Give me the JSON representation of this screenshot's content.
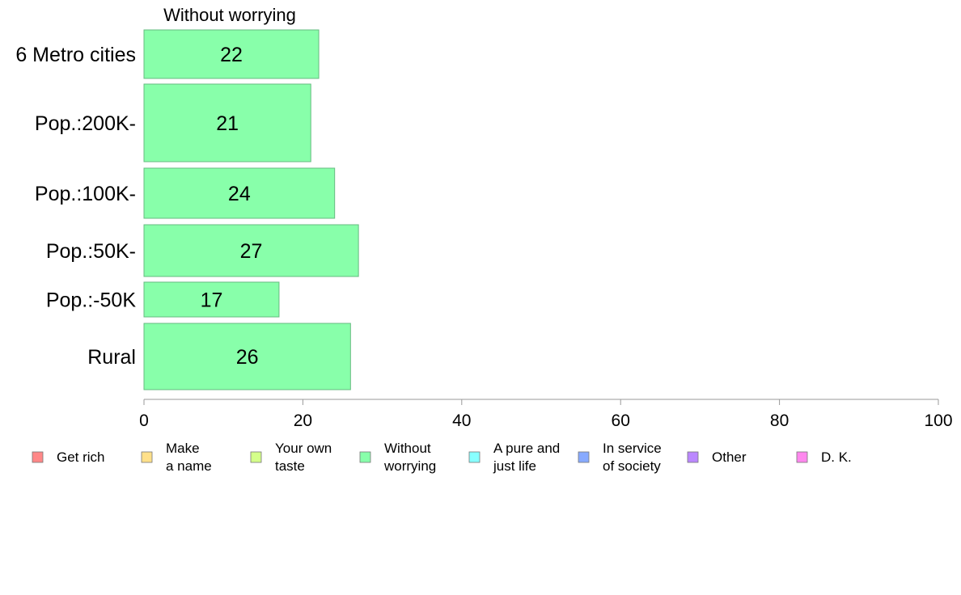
{
  "chart_data": {
    "type": "bar",
    "orientation": "horizontal",
    "title": "Without worrying",
    "categories": [
      "6 Metro cities",
      "Pop.:200K-",
      "Pop.:100K-",
      "Pop.:50K-",
      "Pop.:-50K",
      "Rural"
    ],
    "values": [
      22,
      21,
      24,
      27,
      17,
      26
    ],
    "xlim": [
      0,
      100
    ],
    "xticks": [
      "0",
      "20",
      "40",
      "60",
      "80",
      "100"
    ],
    "xlabel": "",
    "ylabel": "",
    "grid": false,
    "bar_color": "#88ffaa",
    "legend_position": "bottom",
    "legend": [
      {
        "lines": [
          "Get rich"
        ],
        "color": "#ff8888"
      },
      {
        "lines": [
          "Make",
          "a name"
        ],
        "color": "#ffe08a"
      },
      {
        "lines": [
          "Your own",
          "taste"
        ],
        "color": "#d4ff8a"
      },
      {
        "lines": [
          "Without",
          "worrying"
        ],
        "color": "#88ffaa"
      },
      {
        "lines": [
          "A pure and",
          "just life"
        ],
        "color": "#88ffff"
      },
      {
        "lines": [
          "In service",
          "of society"
        ],
        "color": "#88aaff"
      },
      {
        "lines": [
          "Other"
        ],
        "color": "#bb88ff"
      },
      {
        "lines": [
          "D. K."
        ],
        "color": "#ff88ee"
      }
    ]
  }
}
